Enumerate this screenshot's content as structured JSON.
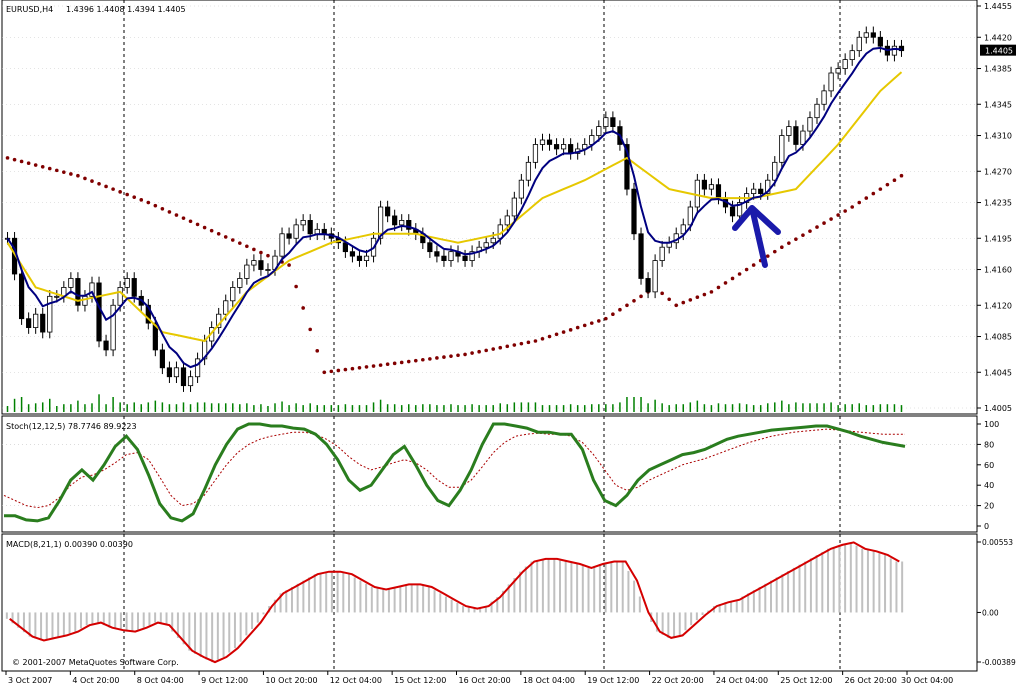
{
  "header": {
    "symbol_label": "EURUSD,H4",
    "ohlc_label": "1.4396 1.4408 1.4394 1.4405"
  },
  "current_price_label": "1.4405",
  "stoch_header": "Stoch(12,12,5) 78.7746 89.9223",
  "macd_header": "MACD(8,21,1) 0.00390 0.00390",
  "copyright": "© 2001-2007 MetaQuotes Software Corp.",
  "colors": {
    "background": "#ffffff",
    "grid": "#c8c8c8",
    "vline": "#000000",
    "bull": "#ffffff",
    "bear": "#000000",
    "ma_fast": "#000080",
    "ma_slow": "#e6c800",
    "sar": "#800000",
    "volume": "#008000",
    "stoch_main": "#2a7d1e",
    "stoch_signal": "#aa0000",
    "macd_hist": "#c0c0c0",
    "macd_signal": "#d40000",
    "arrow": "#1a1aaa"
  },
  "chart_data": [
    {
      "type": "candlestick",
      "title": "EURUSD,H4",
      "y_ticks": [
        "1.4455",
        "1.4420",
        "1.4385",
        "1.4345",
        "1.4310",
        "1.4270",
        "1.4235",
        "1.4195",
        "1.4160",
        "1.4120",
        "1.4085",
        "1.4045",
        "1.4005"
      ],
      "ylim": [
        1.4005,
        1.4455
      ],
      "x_ticks": [
        "3 Oct 2007",
        "4 Oct 20:00",
        "8 Oct 04:00",
        "9 Oct 12:00",
        "10 Oct 20:00",
        "12 Oct 04:00",
        "15 Oct 12:00",
        "16 Oct 20:00",
        "18 Oct 04:00",
        "19 Oct 12:00",
        "22 Oct 20:00",
        "24 Oct 04:00",
        "25 Oct 12:00",
        "26 Oct 20:00",
        "30 Oct 04:00"
      ],
      "closes": [
        1.4195,
        1.4155,
        1.4105,
        1.4095,
        1.411,
        1.409,
        1.413,
        1.413,
        1.414,
        1.415,
        1.412,
        1.413,
        1.4145,
        1.408,
        1.407,
        1.412,
        1.414,
        1.415,
        1.413,
        1.412,
        1.41,
        1.407,
        1.405,
        1.404,
        1.405,
        1.403,
        1.404,
        1.406,
        1.408,
        1.4095,
        1.411,
        1.4125,
        1.414,
        1.415,
        1.4165,
        1.417,
        1.416,
        1.416,
        1.4175,
        1.42,
        1.4195,
        1.421,
        1.4215,
        1.42,
        1.4205,
        1.42,
        1.4195,
        1.419,
        1.418,
        1.4175,
        1.417,
        1.4175,
        1.4195,
        1.423,
        1.422,
        1.421,
        1.4215,
        1.4205,
        1.42,
        1.419,
        1.418,
        1.4175,
        1.417,
        1.418,
        1.4175,
        1.417,
        1.418,
        1.4185,
        1.419,
        1.4195,
        1.421,
        1.422,
        1.424,
        1.426,
        1.428,
        1.43,
        1.4305,
        1.43,
        1.4295,
        1.43,
        1.429,
        1.4295,
        1.43,
        1.431,
        1.432,
        1.433,
        1.432,
        1.43,
        1.425,
        1.42,
        1.415,
        1.4135,
        1.417,
        1.4185,
        1.419,
        1.42,
        1.421,
        1.423,
        1.426,
        1.425,
        1.4255,
        1.424,
        1.423,
        1.422,
        1.4235,
        1.4245,
        1.425,
        1.4245,
        1.426,
        1.428,
        1.431,
        1.432,
        1.43,
        1.4315,
        1.433,
        1.4345,
        1.436,
        1.438,
        1.4385,
        1.4395,
        1.4405,
        1.442,
        1.4425,
        1.442,
        1.441,
        1.44,
        1.441,
        1.4405
      ],
      "ma_slow_points": [
        [
          0,
          1.419
        ],
        [
          4,
          1.414
        ],
        [
          10,
          1.4125
        ],
        [
          16,
          1.4135
        ],
        [
          22,
          1.409
        ],
        [
          28,
          1.408
        ],
        [
          34,
          1.4135
        ],
        [
          40,
          1.417
        ],
        [
          46,
          1.419
        ],
        [
          52,
          1.42
        ],
        [
          58,
          1.42
        ],
        [
          64,
          1.419
        ],
        [
          70,
          1.42
        ],
        [
          76,
          1.424
        ],
        [
          82,
          1.426
        ],
        [
          88,
          1.4285
        ],
        [
          94,
          1.425
        ],
        [
          100,
          1.424
        ],
        [
          106,
          1.424
        ],
        [
          112,
          1.425
        ],
        [
          118,
          1.43
        ],
        [
          124,
          1.436
        ],
        [
          129,
          1.4395
        ]
      ],
      "sar_points": [
        [
          0,
          1.4285
        ],
        [
          10,
          1.4265
        ],
        [
          20,
          1.4235
        ],
        [
          30,
          1.42
        ],
        [
          40,
          1.4165
        ],
        [
          45,
          1.4045
        ],
        [
          55,
          1.4055
        ],
        [
          65,
          1.4065
        ],
        [
          75,
          1.408
        ],
        [
          85,
          1.4105
        ],
        [
          92,
          1.414
        ],
        [
          95,
          1.412
        ],
        [
          100,
          1.4135
        ],
        [
          110,
          1.4185
        ],
        [
          120,
          1.423
        ],
        [
          129,
          1.4275
        ]
      ],
      "current_price": 1.4405
    },
    {
      "type": "line",
      "title": "Stoch(12,12,5) 78.7746 89.9223",
      "y_ticks": [
        "100",
        "80",
        "60",
        "40",
        "20",
        "0"
      ],
      "ylim": [
        0,
        100
      ],
      "series": [
        {
          "values": [
            10,
            10,
            6,
            5,
            8,
            25,
            45,
            55,
            45,
            60,
            78,
            88,
            75,
            50,
            22,
            8,
            5,
            12,
            35,
            60,
            80,
            95,
            100,
            100,
            98,
            98,
            96,
            95,
            90,
            80,
            65,
            45,
            35,
            40,
            55,
            70,
            78,
            60,
            40,
            25,
            20,
            35,
            55,
            80,
            100,
            100,
            98,
            96,
            92,
            92,
            90,
            90,
            75,
            45,
            25,
            20,
            30,
            45,
            55,
            60,
            65,
            70,
            72,
            75,
            80,
            85,
            88,
            90,
            92,
            94,
            95,
            96,
            97,
            98,
            98,
            95,
            92,
            88,
            85,
            82,
            80,
            78
          ]
        },
        {
          "values": [
            30,
            25,
            20,
            18,
            20,
            28,
            40,
            48,
            50,
            55,
            62,
            70,
            72,
            65,
            48,
            30,
            20,
            22,
            30,
            45,
            60,
            72,
            80,
            85,
            88,
            90,
            92,
            92,
            90,
            85,
            78,
            68,
            60,
            55,
            58,
            62,
            65,
            62,
            55,
            45,
            38,
            38,
            45,
            58,
            72,
            82,
            88,
            90,
            91,
            90,
            90,
            88,
            82,
            70,
            55,
            40,
            35,
            38,
            45,
            50,
            55,
            60,
            63,
            66,
            70,
            74,
            78,
            82,
            85,
            88,
            90,
            92,
            93,
            94,
            95,
            94,
            93,
            92,
            91,
            90,
            90,
            90
          ]
        }
      ]
    },
    {
      "type": "bar",
      "title": "MACD(8,21,1) 0.00390 0.00390",
      "y_ticks": [
        "0.00553",
        "0.00",
        "-0.00389"
      ],
      "ylim": [
        -0.00389,
        0.00553
      ],
      "values": [
        -0.0005,
        -0.0012,
        -0.0019,
        -0.0022,
        -0.002,
        -0.0018,
        -0.0015,
        -0.001,
        -0.0008,
        -0.0012,
        -0.0014,
        -0.0015,
        -0.0012,
        -0.0008,
        -0.001,
        -0.002,
        -0.003,
        -0.0035,
        -0.0039,
        -0.0035,
        -0.0028,
        -0.0018,
        -0.0008,
        0.0005,
        0.0015,
        0.002,
        0.0025,
        0.003,
        0.0032,
        0.0032,
        0.003,
        0.0025,
        0.002,
        0.0018,
        0.002,
        0.0022,
        0.0022,
        0.002,
        0.0015,
        0.001,
        0.0005,
        0.0003,
        0.0005,
        0.0012,
        0.0022,
        0.0032,
        0.004,
        0.0042,
        0.0042,
        0.004,
        0.0038,
        0.0035,
        0.0038,
        0.004,
        0.004,
        0.0025,
        0.0,
        -0.0015,
        -0.002,
        -0.0018,
        -0.001,
        -0.0002,
        0.0005,
        0.0008,
        0.001,
        0.0015,
        0.002,
        0.0025,
        0.003,
        0.0035,
        0.004,
        0.0045,
        0.005,
        0.0053,
        0.0055,
        0.005,
        0.0048,
        0.0045,
        0.004
      ]
    }
  ]
}
